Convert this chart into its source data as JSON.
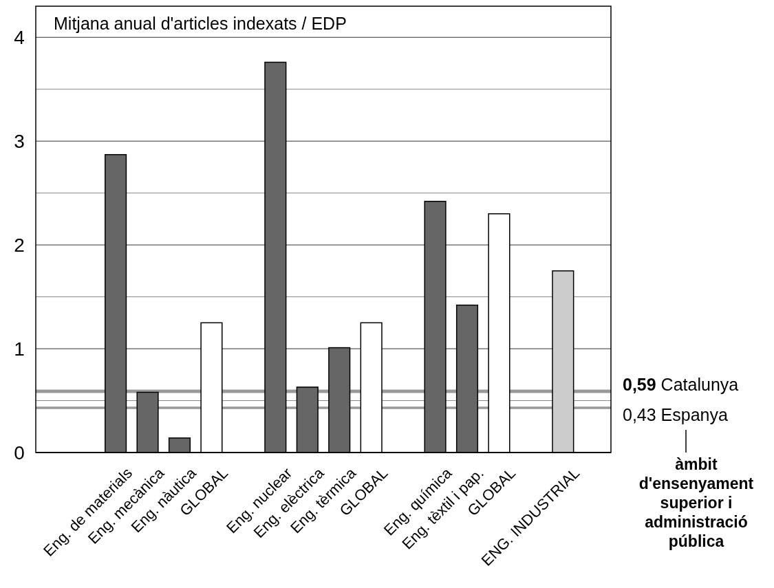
{
  "chart_data": {
    "type": "bar",
    "title": "Mitjana anual d'articles indexats / EDP",
    "categories": [
      null,
      null,
      "Eng. de materials",
      "Eng. mecànica",
      "Eng. nàutica",
      "GLOBAL",
      null,
      "Eng. nuclear",
      "Eng. elèctrica",
      "Eng. tèrmica",
      "GLOBAL",
      null,
      "Eng. química",
      "Eng. tèxtil i pap.",
      "GLOBAL",
      null,
      "ENG. INDUSTRIAL",
      null
    ],
    "values": [
      null,
      null,
      2.87,
      0.58,
      0.14,
      1.25,
      null,
      3.76,
      0.63,
      1.01,
      1.25,
      null,
      2.42,
      1.42,
      2.3,
      null,
      1.75,
      null
    ],
    "colors": [
      null,
      null,
      "#666666",
      "#666666",
      "#666666",
      "#ffffff",
      null,
      "#666666",
      "#666666",
      "#666666",
      "#ffffff",
      null,
      "#666666",
      "#666666",
      "#ffffff",
      null,
      "#cccccc",
      null
    ],
    "ylim": [
      0,
      4.3
    ],
    "yticks": [
      0,
      {
        "value": 0.5,
        "label": null
      },
      1,
      {
        "value": 1.5,
        "label": null
      },
      2,
      {
        "value": 2.5,
        "label": null
      },
      3,
      {
        "value": 3.5,
        "label": null
      },
      4
    ],
    "grid": "y",
    "ref_lines": [
      {
        "axis": "y",
        "value": 0.59,
        "label": "0,59 Catalunya",
        "color": "#999999"
      },
      {
        "axis": "y",
        "value": 0.43,
        "label": "0,43 Espanya",
        "color": "#999999"
      }
    ],
    "annotations": [
      "àmbit d'ensenyament superior i administració pública"
    ]
  }
}
